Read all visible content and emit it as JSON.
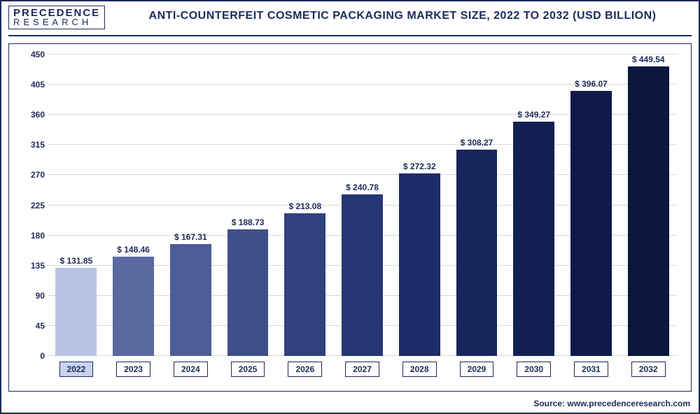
{
  "logo": {
    "top": "PRECEDENCE",
    "bottom": "RESEARCH"
  },
  "title": "ANTI-COUNTERFEIT COSMETIC PACKAGING MARKET SIZE, 2022 TO 2032 (USD BILLION)",
  "source": "Source: www.precedenceresearch.com",
  "chart": {
    "type": "bar",
    "ylim": [
      0,
      450
    ],
    "ytick_step": 45,
    "yticks": [
      0,
      45,
      90,
      135,
      180,
      225,
      270,
      315,
      360,
      405,
      450
    ],
    "grid_color": "#d9d9d9",
    "background_color": "#ffffff",
    "label_fontsize": 12,
    "bar_width": 0.72,
    "categories": [
      "2022",
      "2023",
      "2024",
      "2025",
      "2026",
      "2027",
      "2028",
      "2029",
      "2030",
      "2031",
      "2032"
    ],
    "values": [
      131.85,
      148.46,
      167.31,
      188.73,
      213.08,
      240.78,
      272.32,
      308.27,
      349.27,
      396.07,
      449.54
    ],
    "value_labels": [
      "$ 131.85",
      "$ 148.46",
      "$ 167.31",
      "$ 188.73",
      "$ 213.08",
      "$ 240.78",
      "$ 272.32",
      "$ 308.27",
      "$ 349.27",
      "$ 396.07",
      "$ 449.54"
    ],
    "bar_colors": [
      "#b7c4e4",
      "#5a6aa0",
      "#4d5d95",
      "#3e4f8a",
      "#30417e",
      "#253574",
      "#1c2c68",
      "#16255c",
      "#121f52",
      "#0f1a48",
      "#0c163f"
    ],
    "highlight_index": 0,
    "xbox_bg": "#ffffff",
    "xbox_bg_active": "#c8d4ef",
    "border_color": "#1e2a5a",
    "text_color": "#1e2a5a"
  }
}
